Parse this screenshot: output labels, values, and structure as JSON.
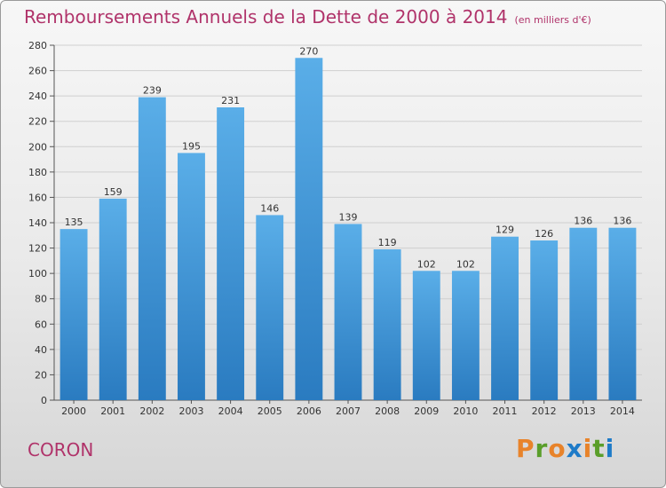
{
  "title": "Remboursements Annuels de la Dette de 2000 à 2014",
  "subtitle": "(en milliers d'€)",
  "place": "CORON",
  "logo_text": "Proxiti",
  "colors": {
    "title": "#b0336a",
    "bar_top": "#5aaee8",
    "bar_bottom": "#2a7bc0",
    "grid": "#cfcfcf",
    "logo_letters": [
      "#e8832a",
      "#5a9e2a",
      "#e8832a",
      "#1e7bc8",
      "#e8832a",
      "#5a9e2a",
      "#1e7bc8"
    ]
  },
  "chart_data": {
    "type": "bar",
    "title": "Remboursements Annuels de la Dette de 2000 à 2014",
    "subtitle": "(en milliers d'€)",
    "xlabel": "",
    "ylabel": "",
    "categories": [
      "2000",
      "2001",
      "2002",
      "2003",
      "2004",
      "2005",
      "2006",
      "2007",
      "2008",
      "2009",
      "2010",
      "2011",
      "2012",
      "2013",
      "2014"
    ],
    "values": [
      135,
      159,
      239,
      195,
      231,
      146,
      270,
      139,
      119,
      102,
      102,
      129,
      126,
      136,
      136
    ],
    "ylim": [
      0,
      280
    ],
    "yticks": [
      0,
      20,
      40,
      60,
      80,
      100,
      120,
      140,
      160,
      180,
      200,
      220,
      240,
      260,
      280
    ],
    "grid": true,
    "data_labels": true
  }
}
